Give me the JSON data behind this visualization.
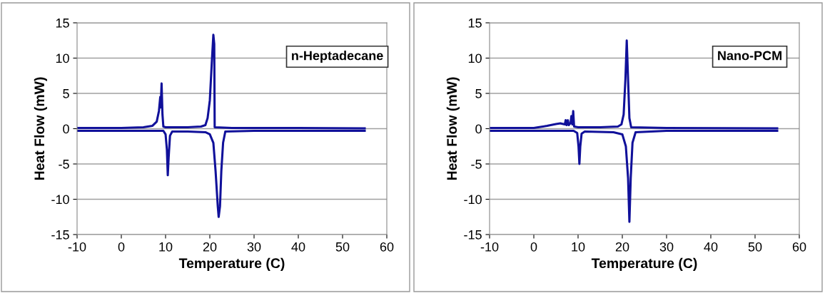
{
  "chart_data": [
    {
      "type": "line",
      "xlabel": "Temperature (C)",
      "ylabel": "Heat Flow (mW)",
      "annotations": [
        "n-Heptadecane"
      ],
      "xlim": [
        -10,
        60
      ],
      "xticks": [
        -10,
        0,
        10,
        20,
        30,
        40,
        50,
        60
      ],
      "ylim": [
        -15,
        15
      ],
      "yticks": [
        -15,
        -10,
        -5,
        0,
        5,
        10,
        15
      ],
      "grid": "y",
      "legend": false,
      "series": [
        {
          "color": "#10109a",
          "x": [
            -10,
            0,
            5,
            7,
            8,
            8.5,
            8.8,
            8.9,
            9.1,
            9.3,
            9.5,
            10,
            15,
            18,
            19,
            19.5,
            20,
            20.5,
            20.8,
            21.0,
            21.1,
            25,
            40,
            55
          ],
          "values": [
            0.1,
            0.1,
            0.2,
            0.4,
            1.0,
            2.5,
            4.5,
            3.0,
            6.4,
            2.0,
            0.3,
            0.2,
            0.2,
            0.3,
            0.5,
            1.5,
            4,
            10,
            13.3,
            12,
            0.2,
            0.1,
            0.1,
            0.05
          ]
        },
        {
          "color": "#10109a",
          "x": [
            -10,
            0,
            8,
            9.5,
            10,
            10.3,
            10.5,
            10.7,
            11,
            11.5,
            15,
            19,
            20,
            20.8,
            21.3,
            21.8,
            22.0,
            22.3,
            22.6,
            23,
            23.5,
            30,
            55
          ],
          "values": [
            -0.3,
            -0.3,
            -0.3,
            -0.3,
            -0.8,
            -3,
            -6.6,
            -4,
            -1,
            -0.4,
            -0.4,
            -0.5,
            -0.8,
            -2,
            -6,
            -11,
            -12.5,
            -11,
            -6,
            -2,
            -0.4,
            -0.3,
            -0.3
          ]
        }
      ]
    },
    {
      "type": "line",
      "xlabel": "Temperature (C)",
      "ylabel": "Heat Flow (mW)",
      "annotations": [
        "Nano-PCM"
      ],
      "xlim": [
        -10,
        60
      ],
      "xticks": [
        -10,
        0,
        10,
        20,
        30,
        40,
        50,
        60
      ],
      "ylim": [
        -15,
        15
      ],
      "yticks": [
        -15,
        -10,
        -5,
        0,
        5,
        10,
        15
      ],
      "grid": "y",
      "legend": false,
      "series": [
        {
          "color": "#10109a",
          "x": [
            -10,
            0,
            1,
            3,
            5,
            6,
            7,
            7.2,
            7.4,
            7.7,
            7.9,
            8.3,
            8.5,
            8.7,
            8.9,
            9.1,
            10,
            15,
            19,
            19.8,
            20.3,
            20.7,
            21,
            21.3,
            21.6,
            22,
            30,
            55
          ],
          "values": [
            0.1,
            0.1,
            0.2,
            0.4,
            0.65,
            0.75,
            0.6,
            1.2,
            0.5,
            1.2,
            0.5,
            0.8,
            1.8,
            0.6,
            2.5,
            0.3,
            0.2,
            0.2,
            0.3,
            0.6,
            2,
            7,
            12.5,
            7,
            1.5,
            0.2,
            0.1,
            0.05
          ]
        },
        {
          "color": "#10109a",
          "x": [
            -10,
            9,
            9.8,
            10.1,
            10.3,
            10.5,
            10.8,
            11.5,
            18,
            20,
            20.8,
            21.3,
            21.6,
            21.9,
            22.3,
            23,
            30,
            55
          ],
          "values": [
            -0.3,
            -0.3,
            -0.6,
            -2.5,
            -5.0,
            -2.5,
            -0.7,
            -0.4,
            -0.5,
            -0.8,
            -2.5,
            -7,
            -13.2,
            -7,
            -2,
            -0.5,
            -0.3,
            -0.3
          ]
        }
      ]
    }
  ]
}
